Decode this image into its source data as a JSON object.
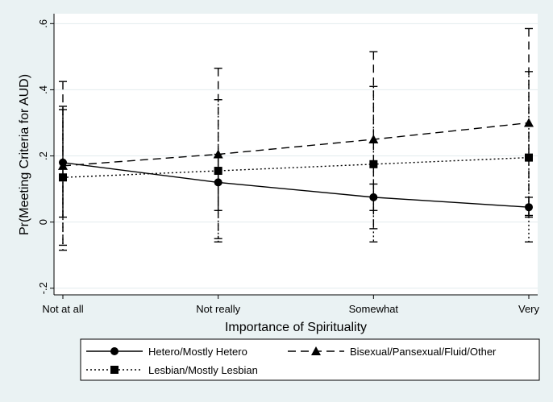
{
  "chart_data": {
    "type": "line",
    "title": "",
    "xlabel": "Importance of Spirituality",
    "ylabel": "Pr(Meeting Criteria for AUD)",
    "categories": [
      "Not at all",
      "Not really",
      "Somewhat",
      "Very"
    ],
    "ylim": [
      -0.22,
      0.63
    ],
    "yticks": [
      -0.2,
      0,
      0.2,
      0.4,
      0.6
    ],
    "ytick_labels": [
      "-.2",
      "0",
      ".2",
      ".4",
      ".6"
    ],
    "grid": "horizontal",
    "legend_position": "bottom",
    "series": [
      {
        "name": "Hetero/Mostly Hetero",
        "values": [
          0.18,
          0.12,
          0.075,
          0.045
        ],
        "ci_low": [
          0.015,
          0.035,
          0.035,
          0.015
        ],
        "ci_high": [
          0.35,
          0.205,
          0.115,
          0.075
        ],
        "line_style": "solid",
        "marker": "circle",
        "color": "#000000"
      },
      {
        "name": "Bisexual/Pansexual/Fluid/Other",
        "values": [
          0.17,
          0.205,
          0.25,
          0.3
        ],
        "ci_low": [
          -0.085,
          -0.05,
          -0.02,
          0.02
        ],
        "ci_high": [
          0.425,
          0.465,
          0.515,
          0.585
        ],
        "line_style": "dashed",
        "marker": "triangle",
        "color": "#000000"
      },
      {
        "name": "Lesbian/Mostly Lesbian",
        "values": [
          0.135,
          0.155,
          0.175,
          0.195
        ],
        "ci_low": [
          -0.07,
          -0.06,
          -0.06,
          -0.06
        ],
        "ci_high": [
          0.34,
          0.37,
          0.41,
          0.455
        ],
        "line_style": "dotted",
        "marker": "square",
        "color": "#000000"
      }
    ]
  },
  "colors": {
    "background": "#eaf2f3",
    "plot_area": "#ffffff",
    "gridline": "#e2ebee",
    "ink": "#000000"
  }
}
